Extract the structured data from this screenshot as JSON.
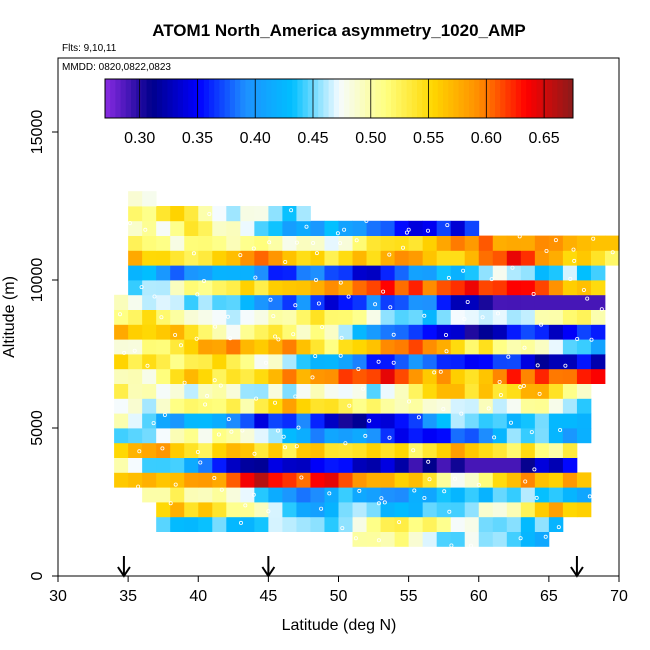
{
  "chart_data": {
    "type": "heatmap",
    "title": "ATOM1 North_America asymmetry_1020_AMP",
    "flights_label": "Flts: 9,10,11",
    "dates_label": "MMDD: 0820,0822,0823",
    "xlabel": "Latitude (deg N)",
    "ylabel": "Altitude (m)",
    "xlim": [
      30,
      70
    ],
    "ylim": [
      0,
      17500
    ],
    "x_ticks": [
      "30",
      "35",
      "40",
      "45",
      "50",
      "55",
      "60",
      "65",
      "70"
    ],
    "y_ticks": [
      "0",
      "5000",
      "10000",
      "15000"
    ],
    "colorbar": {
      "range": [
        0.27,
        0.675
      ],
      "ticks": [
        "0.30",
        "0.35",
        "0.40",
        "0.45",
        "0.50",
        "0.55",
        "0.60",
        "0.65"
      ],
      "colors": [
        "#8a2be2",
        "#00008b",
        "#0000ff",
        "#1e90ff",
        "#00bfff",
        "#f5fbff",
        "#ffff80",
        "#ffd700",
        "#ff8c00",
        "#ff0000",
        "#8b1a1a"
      ]
    },
    "arrows_lat": [
      34.7,
      45.0,
      67.0
    ],
    "cell_size": {
      "dlat": 1.0,
      "dalt": 500
    },
    "row_ranges": [
      {
        "alt": 1250,
        "lat_start": 51,
        "lat_end": 65
      },
      {
        "alt": 1750,
        "lat_start": 37,
        "lat_end": 66
      },
      {
        "alt": 2250,
        "lat_start": 37,
        "lat_end": 68
      },
      {
        "alt": 2750,
        "lat_start": 36,
        "lat_end": 68
      },
      {
        "alt": 3250,
        "lat_start": 34,
        "lat_end": 68
      },
      {
        "alt": 3750,
        "lat_start": 34,
        "lat_end": 67
      },
      {
        "alt": 4250,
        "lat_start": 34,
        "lat_end": 67
      },
      {
        "alt": 4750,
        "lat_start": 34,
        "lat_end": 68
      },
      {
        "alt": 5250,
        "lat_start": 34,
        "lat_end": 68
      },
      {
        "alt": 5750,
        "lat_start": 34,
        "lat_end": 68
      },
      {
        "alt": 6250,
        "lat_start": 34,
        "lat_end": 68
      },
      {
        "alt": 6750,
        "lat_start": 34,
        "lat_end": 69
      },
      {
        "alt": 7250,
        "lat_start": 34,
        "lat_end": 69
      },
      {
        "alt": 7750,
        "lat_start": 34,
        "lat_end": 69
      },
      {
        "alt": 8250,
        "lat_start": 34,
        "lat_end": 69
      },
      {
        "alt": 8750,
        "lat_start": 34,
        "lat_end": 69
      },
      {
        "alt": 9250,
        "lat_start": 34,
        "lat_end": 69
      },
      {
        "alt": 9750,
        "lat_start": 35,
        "lat_end": 69
      },
      {
        "alt": 10250,
        "lat_start": 35,
        "lat_end": 69
      },
      {
        "alt": 10750,
        "lat_start": 35,
        "lat_end": 70
      },
      {
        "alt": 11250,
        "lat_start": 35,
        "lat_end": 70
      },
      {
        "alt": 11750,
        "lat_start": 35,
        "lat_end": 60
      },
      {
        "alt": 12250,
        "lat_start": 35,
        "lat_end": 48
      },
      {
        "alt": 12750,
        "lat_start": 35,
        "lat_end": 37
      }
    ]
  }
}
